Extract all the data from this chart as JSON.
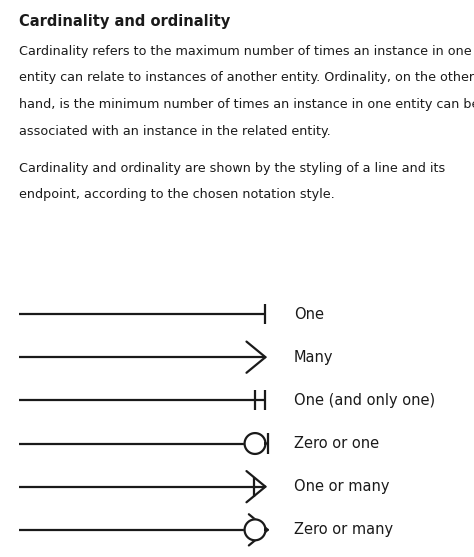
{
  "title": "Cardinality and ordinality",
  "para1_lines": [
    "Cardinality refers to the maximum number of times an instance in one",
    "entity can relate to instances of another entity. Ordinality, on the other",
    "hand, is the minimum number of times an instance in one entity can be",
    "associated with an instance in the related entity."
  ],
  "para2_lines": [
    "Cardinality and ordinality are shown by the styling of a line and its",
    "endpoint, according to the chosen notation style."
  ],
  "symbols": [
    {
      "label": "One",
      "type": "one"
    },
    {
      "label": "Many",
      "type": "many"
    },
    {
      "label": "One (and only one)",
      "type": "one_only"
    },
    {
      "label": "Zero or one",
      "type": "zero_one"
    },
    {
      "label": "One or many",
      "type": "one_many"
    },
    {
      "label": "Zero or many",
      "type": "zero_many"
    }
  ],
  "bg_color": "#ffffff",
  "text_color": "#1a1a1a",
  "line_color": "#1a1a1a",
  "title_fontsize": 10.5,
  "body_fontsize": 9.2,
  "label_fontsize": 10.5,
  "line_lw": 1.6,
  "symbol_lw": 1.6
}
